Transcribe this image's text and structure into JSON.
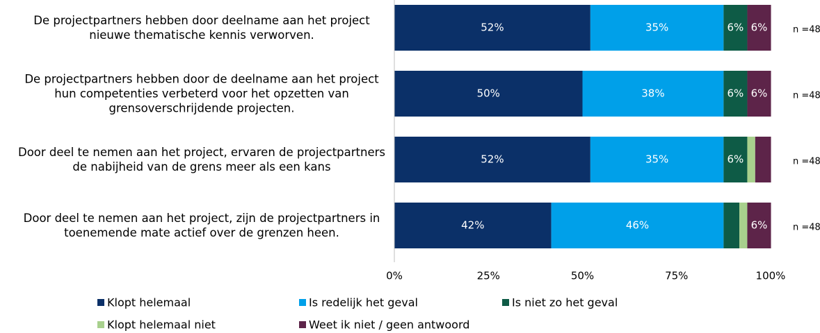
{
  "chart_data": {
    "type": "stacked-bar-horizontal",
    "categories": [
      "De projectpartners hebben door deelname aan het project nieuwe thematische kennis verworven.",
      "De projectpartners hebben door de deelname aan het project hun competenties verbeterd voor het opzetten van grensoverschrijdende projecten.",
      "Door deel te nemen aan het project, ervaren de projectpartners de nabijheid van de grens meer als een kans",
      "Door deel te nemen aan het project, zijn de projectpartners in toenemende mate actief over de grenzen heen."
    ],
    "series": [
      {
        "name": "Klopt helemaal",
        "color": "#0b3068",
        "values": [
          52.1,
          50,
          52.1,
          41.7
        ],
        "value_labels": [
          "52%",
          "50%",
          "52%",
          "42%"
        ]
      },
      {
        "name": "Is redelijk het geval",
        "color": "#00a0e9",
        "values": [
          35.4,
          37.5,
          35.4,
          45.8
        ],
        "value_labels": [
          "35%",
          "38%",
          "35%",
          "46%"
        ]
      },
      {
        "name": "Is niet zo het geval",
        "color": "#0e5b46",
        "values": [
          6.3,
          6.3,
          6.3,
          4.2
        ],
        "value_labels": [
          "6%",
          "6%",
          "6%",
          null
        ]
      },
      {
        "name": "Klopt helemaal niet",
        "color": "#a8d08d",
        "values": [
          0,
          0,
          2.1,
          2.1
        ],
        "value_labels": [
          null,
          null,
          null,
          null
        ]
      },
      {
        "name": "Weet ik niet / geen antwoord",
        "color": "#5d2449",
        "values": [
          6.3,
          6.3,
          4.2,
          6.3
        ],
        "value_labels": [
          "6%",
          "6%",
          null,
          "6%"
        ]
      }
    ],
    "annotations": [
      "n =48",
      "n =48",
      "n =48",
      "n =48"
    ],
    "xlim": [
      0,
      100
    ],
    "xticks": [
      {
        "value": 0,
        "label": "0%"
      },
      {
        "value": 25,
        "label": "25%"
      },
      {
        "value": 50,
        "label": "50%"
      },
      {
        "value": 75,
        "label": "75%"
      },
      {
        "value": 100,
        "label": "100%"
      }
    ]
  }
}
